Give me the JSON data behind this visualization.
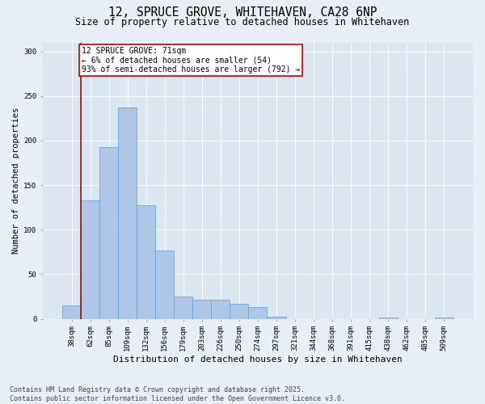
{
  "title_line1": "12, SPRUCE GROVE, WHITEHAVEN, CA28 6NP",
  "title_line2": "Size of property relative to detached houses in Whitehaven",
  "xlabel": "Distribution of detached houses by size in Whitehaven",
  "ylabel": "Number of detached properties",
  "categories": [
    "38sqm",
    "62sqm",
    "85sqm",
    "109sqm",
    "132sqm",
    "156sqm",
    "179sqm",
    "203sqm",
    "226sqm",
    "250sqm",
    "274sqm",
    "297sqm",
    "321sqm",
    "344sqm",
    "368sqm",
    "391sqm",
    "415sqm",
    "438sqm",
    "462sqm",
    "485sqm",
    "509sqm"
  ],
  "values": [
    15,
    133,
    193,
    237,
    127,
    77,
    25,
    21,
    21,
    17,
    13,
    2,
    0,
    0,
    0,
    0,
    0,
    1,
    0,
    0,
    1
  ],
  "bar_color": "#aec6e8",
  "bar_edge_color": "#5a9fd4",
  "highlight_color": "#c00000",
  "vline_x_index": 1,
  "annotation_text": "12 SPRUCE GROVE: 71sqm\n← 6% of detached houses are smaller (54)\n93% of semi-detached houses are larger (792) →",
  "annotation_box_color": "#c00000",
  "ylim": [
    0,
    310
  ],
  "yticks": [
    0,
    50,
    100,
    150,
    200,
    250,
    300
  ],
  "background_color": "#e8eef5",
  "plot_bg_color": "#dce6f0",
  "footer_text": "Contains HM Land Registry data © Crown copyright and database right 2025.\nContains public sector information licensed under the Open Government Licence v3.0.",
  "title_fontsize": 10.5,
  "subtitle_fontsize": 8.5,
  "annotation_fontsize": 7.0,
  "footer_fontsize": 6.0,
  "ylabel_fontsize": 7.5,
  "xlabel_fontsize": 8.0,
  "tick_fontsize": 6.5
}
